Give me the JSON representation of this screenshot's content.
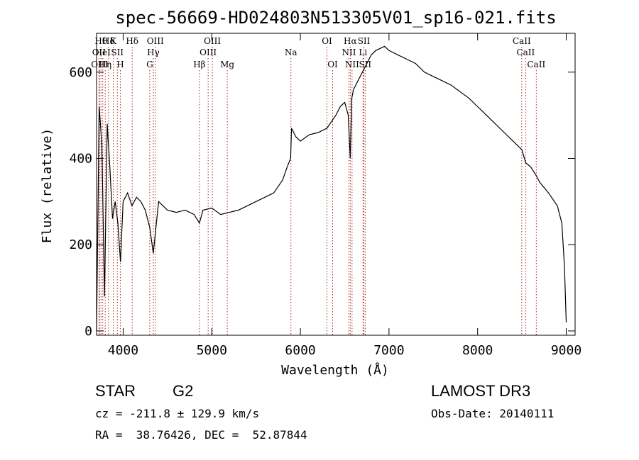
{
  "chart_data": {
    "type": "line",
    "title": "spec-56669-HD024803N513305V01_sp16-021.fits",
    "xlabel": "Wavelength (Å)",
    "ylabel": "Flux (relative)",
    "xlim": [
      3700,
      9100
    ],
    "ylim": [
      -10,
      690
    ],
    "xticks": [
      4000,
      5000,
      6000,
      7000,
      8000,
      9000
    ],
    "yticks": [
      0,
      200,
      400,
      600
    ],
    "grid": false,
    "series": [
      {
        "x": [
          3700,
          3730,
          3760,
          3790,
          3820,
          3850,
          3880,
          3910,
          3940,
          3970,
          4000,
          4050,
          4100,
          4150,
          4200,
          4250,
          4300,
          4340,
          4400,
          4450,
          4500,
          4600,
          4700,
          4800,
          4861,
          4900,
          5000,
          5100,
          5200,
          5300,
          5400,
          5500,
          5600,
          5700,
          5800,
          5850,
          5890,
          5900,
          5950,
          6000,
          6100,
          6200,
          6300,
          6400,
          6450,
          6500,
          6540,
          6563,
          6580,
          6600,
          6650,
          6700,
          6750,
          6800,
          6850,
          6900,
          6950,
          7000,
          7100,
          7200,
          7300,
          7400,
          7500,
          7600,
          7700,
          7800,
          7900,
          8000,
          8100,
          8200,
          8300,
          8400,
          8500,
          8542,
          8600,
          8662,
          8700,
          8800,
          8900,
          8950,
          8980,
          9000
        ],
        "values": [
          0,
          520,
          430,
          80,
          480,
          380,
          260,
          300,
          250,
          160,
          300,
          320,
          290,
          310,
          300,
          280,
          240,
          180,
          300,
          290,
          280,
          275,
          280,
          270,
          250,
          280,
          285,
          270,
          275,
          280,
          290,
          300,
          310,
          320,
          350,
          380,
          400,
          470,
          450,
          440,
          455,
          460,
          470,
          500,
          520,
          530,
          500,
          400,
          540,
          560,
          580,
          600,
          620,
          640,
          650,
          655,
          660,
          650,
          640,
          630,
          620,
          600,
          590,
          580,
          570,
          555,
          540,
          520,
          500,
          480,
          460,
          440,
          420,
          390,
          380,
          360,
          345,
          320,
          290,
          250,
          150,
          20
        ]
      }
    ],
    "line_marks": [
      {
        "x": 3727,
        "row": 1,
        "label": "OII"
      },
      {
        "x": 3734,
        "row": 2,
        "label": "OIII"
      },
      {
        "x": 3750,
        "row": 0,
        "label": "Hθ"
      },
      {
        "x": 3770,
        "row": 1,
        "label": "HeI"
      },
      {
        "x": 3798,
        "row": 2,
        "label": "Hη"
      },
      {
        "x": 3835,
        "row": 0,
        "label": "Hδ"
      },
      {
        "x": 3889,
        "row": 0,
        "label": "K"
      },
      {
        "x": 3934,
        "row": 1,
        "label": "SII"
      },
      {
        "x": 3968,
        "row": 2,
        "label": "H"
      },
      {
        "x": 4102,
        "row": 0,
        "label": "Hδ"
      },
      {
        "x": 4300,
        "row": 2,
        "label": "G"
      },
      {
        "x": 4341,
        "row": 1,
        "label": "Hγ"
      },
      {
        "x": 4363,
        "row": 0,
        "label": "OIII"
      },
      {
        "x": 4861,
        "row": 2,
        "label": "Hβ"
      },
      {
        "x": 4959,
        "row": 1,
        "label": "OIII"
      },
      {
        "x": 5007,
        "row": 0,
        "label": "OIII"
      },
      {
        "x": 5175,
        "row": 2,
        "label": "Mg"
      },
      {
        "x": 5893,
        "row": 1,
        "label": "Na"
      },
      {
        "x": 6300,
        "row": 0,
        "label": "OI"
      },
      {
        "x": 6364,
        "row": 2,
        "label": "OI"
      },
      {
        "x": 6548,
        "row": 1,
        "label": "NII"
      },
      {
        "x": 6563,
        "row": 0,
        "label": "Hα"
      },
      {
        "x": 6583,
        "row": 2,
        "label": "NII"
      },
      {
        "x": 6707,
        "row": 1,
        "label": "Li"
      },
      {
        "x": 6717,
        "row": 0,
        "label": "SII"
      },
      {
        "x": 6731,
        "row": 2,
        "label": "SII"
      },
      {
        "x": 8498,
        "row": 0,
        "label": "CaII"
      },
      {
        "x": 8542,
        "row": 1,
        "label": "CaII"
      },
      {
        "x": 8662,
        "row": 2,
        "label": "CaII"
      }
    ],
    "colors": {
      "curve": "#000000",
      "line_marks": "#b22222"
    }
  },
  "footer": {
    "object": "STAR",
    "subclass": "G2",
    "survey": "LAMOST DR3",
    "cz": "cz = -211.8 ± 129.9 km/s",
    "obs_date": "Obs-Date: 20140111",
    "radec": "RA =  38.76426, DEC =  52.87844"
  }
}
